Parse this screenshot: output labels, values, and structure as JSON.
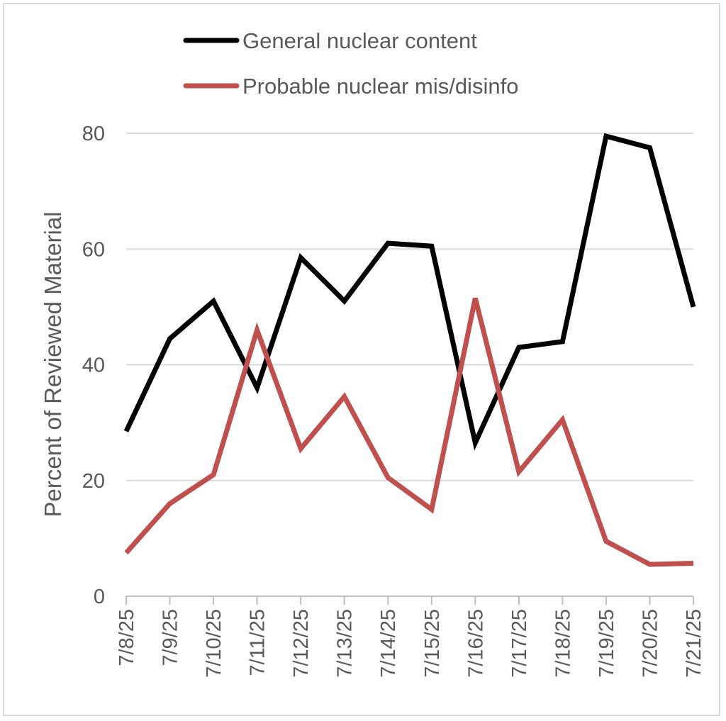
{
  "chart_data": {
    "type": "line",
    "title": "",
    "xlabel": "",
    "ylabel": "Percent of Reviewed Material",
    "ylim": [
      0,
      80
    ],
    "yticks": [
      "0",
      "20",
      "40",
      "60",
      "80"
    ],
    "grid": true,
    "legend_position": "top",
    "categories": [
      "7/8/25",
      "7/9/25",
      "7/10/25",
      "7/11/25",
      "7/12/25",
      "7/13/25",
      "7/14/25",
      "7/15/25",
      "7/16/25",
      "7/17/25",
      "7/18/25",
      "7/19/25",
      "7/20/25",
      "7/21/25"
    ],
    "series": [
      {
        "name": "General nuclear content",
        "color": "#000000",
        "values": [
          28.5,
          44.5,
          51,
          36,
          58.5,
          51,
          61,
          60.5,
          26.5,
          43,
          44,
          79.5,
          77.5,
          50
        ]
      },
      {
        "name": "Probable nuclear mis/disinfo",
        "color": "#c0504d",
        "values": [
          7.5,
          16,
          21,
          46,
          25.5,
          34.5,
          20.5,
          15,
          51.5,
          21.5,
          30.5,
          9.5,
          5.5,
          5.7
        ]
      }
    ]
  }
}
